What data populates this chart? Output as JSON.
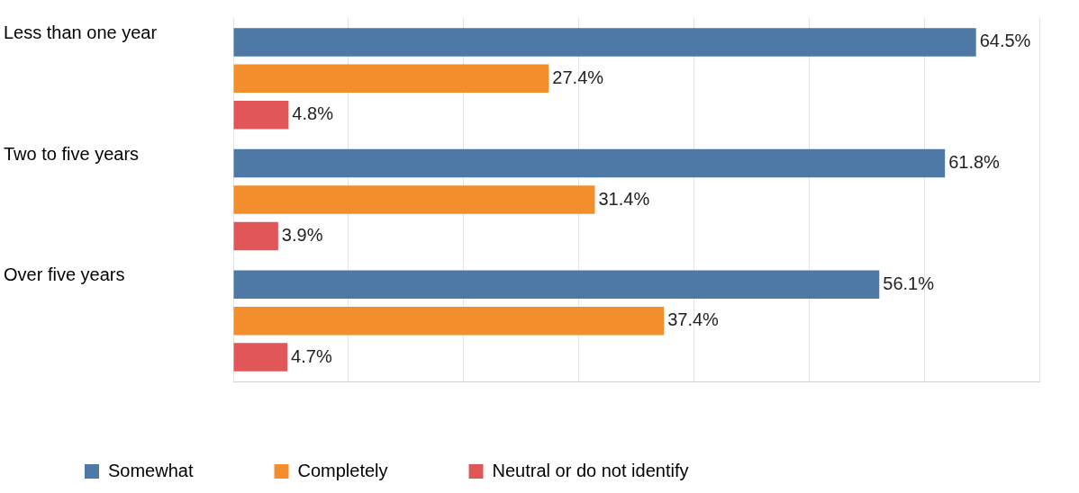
{
  "chart_data": {
    "type": "bar",
    "orientation": "horizontal",
    "categories": [
      "Less than one year",
      "Two to five years",
      "Over five years"
    ],
    "series": [
      {
        "name": "Somewhat",
        "color": "#4e79a7",
        "values": [
          64.5,
          61.8,
          56.1
        ],
        "value_labels": [
          "64.5%",
          "61.8%",
          "56.1%"
        ]
      },
      {
        "name": "Completely",
        "color": "#f28e2b",
        "values": [
          27.4,
          31.4,
          37.4
        ],
        "value_labels": [
          "27.4%",
          "31.4%",
          "37.4%"
        ]
      },
      {
        "name": "Neutral or do not identify",
        "color": "#e15759",
        "values": [
          4.8,
          3.9,
          4.7
        ],
        "value_labels": [
          "4.8%",
          "3.9%",
          "4.7%"
        ]
      }
    ],
    "tick_labels": "y",
    "grid": "x",
    "legend": "bottom left"
  }
}
